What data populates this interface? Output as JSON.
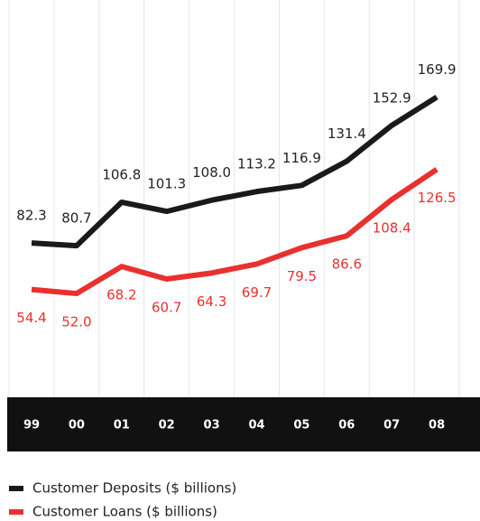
{
  "chart_data": {
    "type": "line",
    "categories": [
      "99",
      "00",
      "01",
      "02",
      "03",
      "04",
      "05",
      "06",
      "07",
      "08"
    ],
    "series": [
      {
        "name": "Customer Deposits ($ billions)",
        "color": "#1a1a1a",
        "values": [
          82.3,
          80.7,
          106.8,
          101.3,
          108.0,
          113.2,
          116.9,
          131.4,
          152.9,
          169.9
        ],
        "value_labels": [
          "82.3",
          "80.7",
          "106.8",
          "101.3",
          "108.0",
          "113.2",
          "116.9",
          "131.4",
          "152.9",
          "169.9"
        ]
      },
      {
        "name": "Customer Loans ($ billions)",
        "color": "#e8312f",
        "values": [
          54.4,
          52.0,
          68.2,
          60.7,
          64.3,
          69.7,
          79.5,
          86.6,
          108.4,
          126.5
        ],
        "value_labels": [
          "54.4",
          "52.0",
          "68.2",
          "60.7",
          "64.3",
          "69.7",
          "79.5",
          "86.6",
          "108.4",
          "126.5"
        ]
      }
    ],
    "ylim": [
      0,
      200
    ]
  }
}
